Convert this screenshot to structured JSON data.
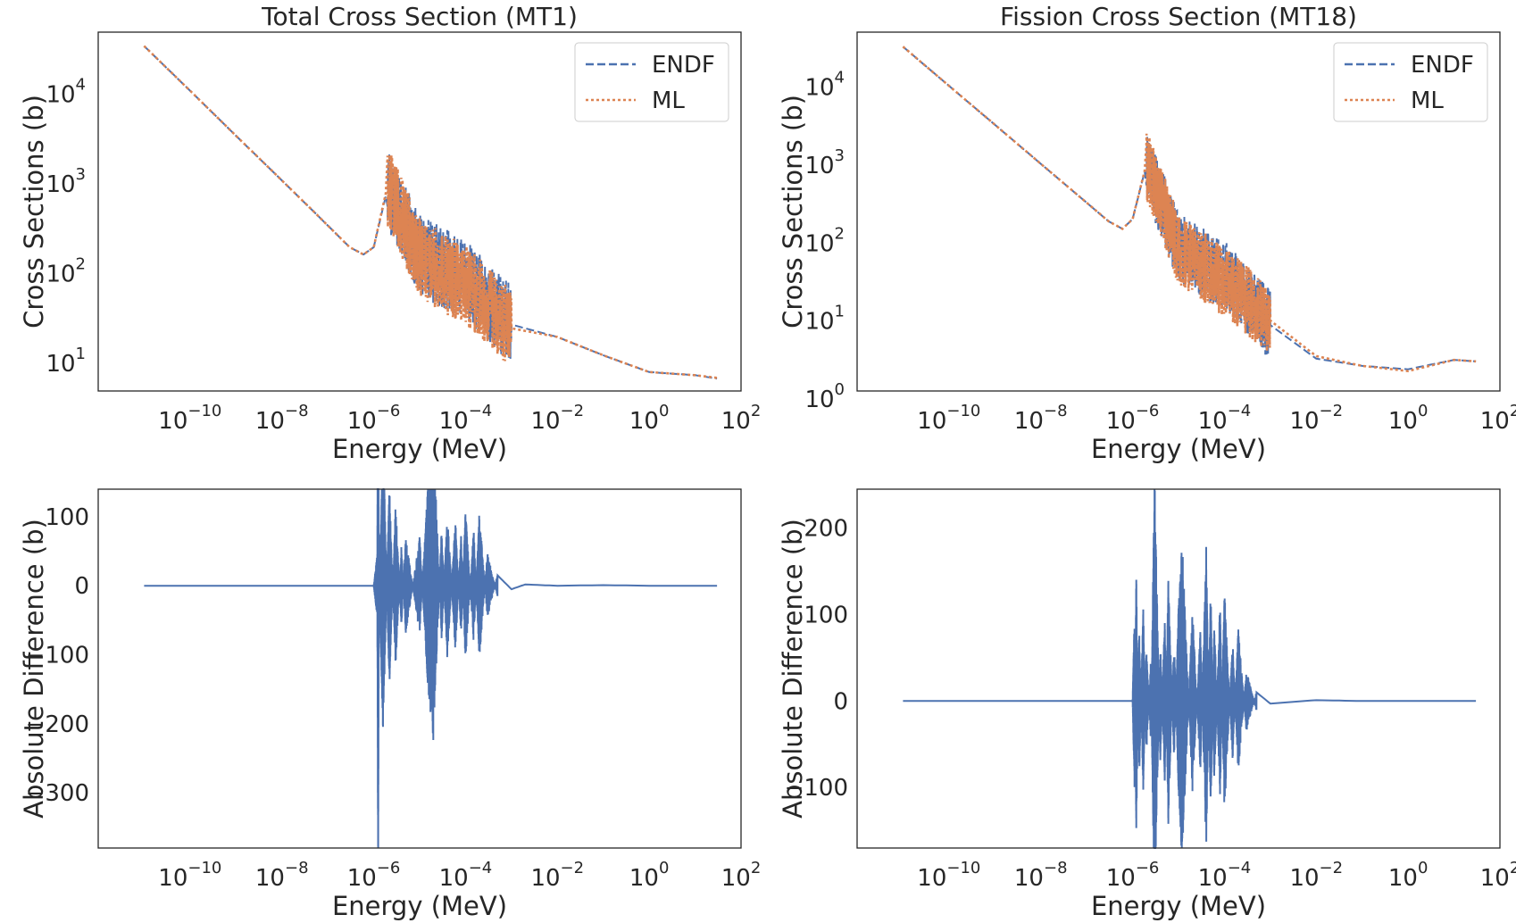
{
  "colors": {
    "endf": "#4c72b0",
    "ml": "#dd8452",
    "diff": "#4c72b0",
    "axes": "#262626"
  },
  "chart_data": [
    {
      "type": "line",
      "title": "Total Cross Section (MT1)",
      "xlabel": "Energy (MeV)",
      "ylabel": "Cross Sections (b)",
      "xscale": "log",
      "yscale": "log",
      "xlim": [
        1e-12,
        100
      ],
      "ylim": [
        4,
        40000
      ],
      "xticks": [
        {
          "base": "10",
          "exp": "−10"
        },
        {
          "base": "10",
          "exp": "−8"
        },
        {
          "base": "10",
          "exp": "−6"
        },
        {
          "base": "10",
          "exp": "−4"
        },
        {
          "base": "10",
          "exp": "−2"
        },
        {
          "base": "10",
          "exp": "0"
        },
        {
          "base": "10",
          "exp": "2"
        }
      ],
      "yticks": [
        {
          "base": "10",
          "exp": "1"
        },
        {
          "base": "10",
          "exp": "2"
        },
        {
          "base": "10",
          "exp": "3"
        },
        {
          "base": "10",
          "exp": "4"
        }
      ],
      "legend": {
        "position": "top-right",
        "entries": [
          "ENDF",
          "ML"
        ]
      },
      "grid": false,
      "series": [
        {
          "name": "ENDF",
          "style": "dashed",
          "x": [
            1e-11,
            1e-10,
            1e-09,
            1e-08,
            1e-07,
            3e-07,
            6e-07,
            1e-06,
            2e-06,
            1e-05,
            0.0001,
            0.001,
            0.01,
            0.1,
            1,
            10,
            30
          ],
          "y": [
            28000,
            8900,
            2800,
            890,
            280,
            160,
            133,
            160,
            720,
            130,
            70,
            22,
            16,
            10,
            6.5,
            6.0,
            5.5
          ]
        },
        {
          "name": "ML",
          "style": "dotted",
          "x": [
            1e-11,
            1e-10,
            1e-09,
            1e-08,
            1e-07,
            3e-07,
            6e-07,
            1e-06,
            2e-06,
            1e-05,
            0.0001,
            0.001,
            0.01,
            0.1,
            1,
            10,
            30
          ],
          "y": [
            28000,
            8900,
            2800,
            890,
            280,
            160,
            133,
            160,
            780,
            120,
            60,
            20,
            16,
            10,
            6.5,
            6.0,
            5.6
          ]
        }
      ]
    },
    {
      "type": "line",
      "title": "Fission Cross Section (MT18)",
      "xlabel": "Energy (MeV)",
      "ylabel": "Cross Sections (b)",
      "xscale": "log",
      "yscale": "log",
      "xlim": [
        1e-12,
        100
      ],
      "ylim": [
        1,
        40000
      ],
      "xticks": [
        {
          "base": "10",
          "exp": "−10"
        },
        {
          "base": "10",
          "exp": "−8"
        },
        {
          "base": "10",
          "exp": "−6"
        },
        {
          "base": "10",
          "exp": "−4"
        },
        {
          "base": "10",
          "exp": "−2"
        },
        {
          "base": "10",
          "exp": "0"
        },
        {
          "base": "10",
          "exp": "2"
        }
      ],
      "yticks": [
        {
          "base": "10",
          "exp": "0"
        },
        {
          "base": "10",
          "exp": "1"
        },
        {
          "base": "10",
          "exp": "2"
        },
        {
          "base": "10",
          "exp": "3"
        },
        {
          "base": "10",
          "exp": "4"
        }
      ],
      "legend": {
        "position": "top-right",
        "entries": [
          "ENDF",
          "ML"
        ]
      },
      "grid": false,
      "series": [
        {
          "name": "ENDF",
          "style": "dashed",
          "x": [
            1e-11,
            1e-10,
            1e-09,
            1e-08,
            1e-07,
            3e-07,
            6e-07,
            1e-06,
            2e-06,
            1e-05,
            0.0001,
            0.001,
            0.01,
            0.1,
            1,
            10,
            30
          ],
          "y": [
            26000,
            8200,
            2600,
            820,
            260,
            150,
            120,
            160,
            800,
            70,
            30,
            7,
            2.6,
            2.1,
            1.9,
            2.5,
            2.4
          ]
        },
        {
          "name": "ML",
          "style": "dotted",
          "x": [
            1e-11,
            1e-10,
            1e-09,
            1e-08,
            1e-07,
            3e-07,
            6e-07,
            1e-06,
            2e-06,
            1e-05,
            0.0001,
            0.001,
            0.01,
            0.1,
            1,
            10,
            30
          ],
          "y": [
            26000,
            8200,
            2600,
            820,
            260,
            150,
            120,
            160,
            820,
            65,
            25,
            8,
            2.8,
            2.1,
            1.8,
            2.5,
            2.4
          ]
        }
      ]
    },
    {
      "type": "line",
      "title": "",
      "xlabel": "Energy (MeV)",
      "ylabel": "Absolute Difference (b)",
      "xscale": "log",
      "yscale": "linear",
      "xlim": [
        1e-12,
        100
      ],
      "ylim": [
        -380,
        140
      ],
      "xticks": [
        {
          "base": "10",
          "exp": "−10"
        },
        {
          "base": "10",
          "exp": "−8"
        },
        {
          "base": "10",
          "exp": "−6"
        },
        {
          "base": "10",
          "exp": "−4"
        },
        {
          "base": "10",
          "exp": "−2"
        },
        {
          "base": "10",
          "exp": "0"
        },
        {
          "base": "10",
          "exp": "2"
        }
      ],
      "yticks": [
        "−300",
        "−200",
        "−100",
        "0",
        "100"
      ],
      "ytick_values": [
        -300,
        -200,
        -100,
        0,
        100
      ],
      "grid": false,
      "series": [
        {
          "x": [
            1e-11,
            1e-06,
            1.2e-06,
            1.25e-06,
            1.3e-06,
            1.6e-06,
            2e-06,
            2.2e-06,
            3e-06,
            4e-06,
            5e-06,
            1e-05,
            1.5e-05,
            2e-05,
            3e-05,
            4e-05,
            6e-05,
            8e-05,
            0.0001,
            0.00015,
            0.0002,
            0.0003,
            0.0005,
            0.001,
            0.002,
            0.01,
            0.1,
            1,
            30
          ],
          "y": [
            0,
            0,
            -40,
            -360,
            10,
            -180,
            40,
            120,
            -100,
            50,
            -60,
            60,
            -120,
            -190,
            70,
            -90,
            80,
            -60,
            95,
            -70,
            90,
            -40,
            15,
            -5,
            2,
            0,
            1,
            0,
            0
          ]
        }
      ]
    },
    {
      "type": "line",
      "title": "",
      "xlabel": "Energy (MeV)",
      "ylabel": "Absolute Difference (b)",
      "xscale": "log",
      "yscale": "linear",
      "xlim": [
        1e-12,
        100
      ],
      "ylim": [
        -170,
        245
      ],
      "xticks": [
        {
          "base": "10",
          "exp": "−10"
        },
        {
          "base": "10",
          "exp": "−8"
        },
        {
          "base": "10",
          "exp": "−6"
        },
        {
          "base": "10",
          "exp": "−4"
        },
        {
          "base": "10",
          "exp": "−2"
        },
        {
          "base": "10",
          "exp": "0"
        },
        {
          "base": "10",
          "exp": "2"
        }
      ],
      "yticks": [
        "−100",
        "0",
        "100",
        "200"
      ],
      "ytick_values": [
        -100,
        0,
        100,
        200
      ],
      "grid": false,
      "series": [
        {
          "x": [
            1e-11,
            1e-06,
            1.1e-06,
            1.2e-06,
            1.4e-06,
            1.7e-06,
            2e-06,
            2.5e-06,
            3e-06,
            4e-06,
            5e-06,
            6e-06,
            8e-06,
            1e-05,
            1.2e-05,
            2e-05,
            3e-05,
            4e-05,
            5e-05,
            6e-05,
            8e-05,
            0.0001,
            0.00015,
            0.0002,
            0.0003,
            0.0005,
            0.001,
            0.01,
            0.1,
            1,
            30
          ],
          "y": [
            0,
            0,
            85,
            -125,
            70,
            -90,
            50,
            -40,
            225,
            -60,
            80,
            -120,
            60,
            -90,
            -155,
            90,
            -70,
            150,
            -110,
            80,
            -95,
            110,
            -60,
            70,
            -30,
            10,
            -3,
            1,
            0,
            0,
            0
          ]
        }
      ]
    }
  ]
}
